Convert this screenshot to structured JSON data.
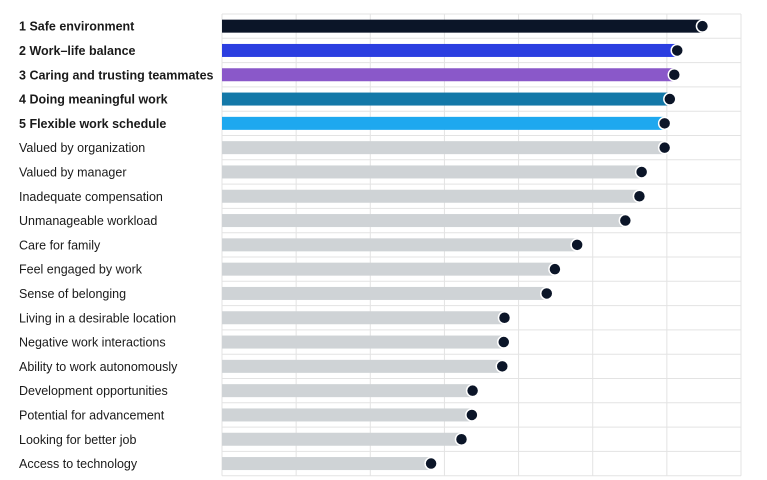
{
  "chart_data": {
    "type": "bar",
    "orientation": "horizontal",
    "title": "",
    "xlabel": "",
    "ylabel": "",
    "grid": true,
    "xlim": [
      0,
      70
    ],
    "categories": [
      {
        "rank": "1",
        "label": "Safe environment"
      },
      {
        "rank": "2",
        "label": "Work–life balance"
      },
      {
        "rank": "3",
        "label": "Caring and trusting teammates"
      },
      {
        "rank": "4",
        "label": "Doing meaningful work"
      },
      {
        "rank": "5",
        "label": "Flexible work schedule"
      },
      {
        "rank": "",
        "label": "Valued by organization"
      },
      {
        "rank": "",
        "label": "Valued by manager"
      },
      {
        "rank": "",
        "label": "Inadequate compensation"
      },
      {
        "rank": "",
        "label": "Unmanageable workload"
      },
      {
        "rank": "",
        "label": "Care for family"
      },
      {
        "rank": "",
        "label": "Feel engaged by work"
      },
      {
        "rank": "",
        "label": "Sense of belonging"
      },
      {
        "rank": "",
        "label": "Living in a desirable location"
      },
      {
        "rank": "",
        "label": "Negative work interactions"
      },
      {
        "rank": "",
        "label": "Ability to work autonomously"
      },
      {
        "rank": "",
        "label": "Development opportunities"
      },
      {
        "rank": "",
        "label": "Potential for advancement"
      },
      {
        "rank": "",
        "label": "Looking for better job"
      },
      {
        "rank": "",
        "label": "Access to technology"
      }
    ],
    "values": [
      64.8,
      61.4,
      61.0,
      60.4,
      59.7,
      59.7,
      56.6,
      56.3,
      54.4,
      47.9,
      44.9,
      43.8,
      38.1,
      38.0,
      37.8,
      33.8,
      33.7,
      32.3,
      28.2
    ],
    "colors": {
      "highlight": [
        "#0b1528",
        "#2b3ee0",
        "#8a58c9",
        "#1378a8",
        "#1ea8ef"
      ],
      "default_bar": "#cfd3d6",
      "dot": "#0b1528",
      "gridline": "#e3e3e3"
    }
  }
}
